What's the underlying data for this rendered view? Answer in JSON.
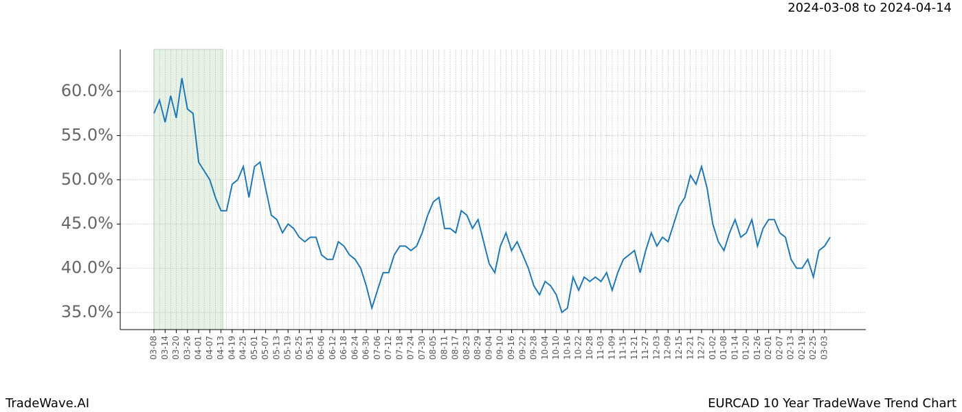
{
  "chart_data": {
    "type": "line",
    "title": "2024-03-08 to 2024-04-14",
    "footer_left": "TradeWave.AI",
    "footer_right": "EURCAD 10 Year TradeWave Trend Chart",
    "categories": [
      "03-08",
      null,
      "03-14",
      null,
      "03-20",
      null,
      "03-26",
      null,
      "04-01",
      null,
      "04-07",
      null,
      "04-13",
      null,
      "04-19",
      null,
      "04-25",
      null,
      "05-01",
      null,
      "05-07",
      null,
      "05-13",
      null,
      "05-19",
      null,
      "05-25",
      null,
      "05-31",
      null,
      "06-06",
      null,
      "06-12",
      null,
      "06-18",
      null,
      "06-24",
      null,
      "06-30",
      null,
      "07-06",
      null,
      "07-12",
      null,
      "07-18",
      null,
      "07-24",
      null,
      "07-30",
      null,
      "08-05",
      null,
      "08-11",
      null,
      "08-17",
      null,
      "08-23",
      null,
      "08-29",
      null,
      "09-04",
      null,
      "09-10",
      null,
      "09-16",
      null,
      "09-22",
      null,
      "09-28",
      null,
      "10-04",
      null,
      "10-10",
      null,
      "10-16",
      null,
      "10-22",
      null,
      "10-28",
      null,
      "11-03",
      null,
      "11-09",
      null,
      "11-15",
      null,
      "11-21",
      null,
      "11-27",
      null,
      "12-03",
      null,
      "12-09",
      null,
      "12-15",
      null,
      "12-21",
      null,
      "12-27",
      null,
      "01-02",
      null,
      "01-08",
      null,
      "01-14",
      null,
      "01-20",
      null,
      "01-26",
      null,
      "02-01",
      null,
      "02-07",
      null,
      "02-13",
      null,
      "02-19",
      null,
      "02-25",
      null,
      "03-03",
      null
    ],
    "values": [
      57.5,
      59,
      56.5,
      59.5,
      57,
      61.5,
      58,
      57.5,
      52,
      51,
      50,
      48,
      46.5,
      46.5,
      49.5,
      50,
      51.5,
      48,
      51.5,
      52,
      49,
      46,
      45.5,
      44,
      45,
      44.5,
      43.5,
      43,
      43.5,
      43.5,
      41.5,
      41,
      41,
      43,
      42.5,
      41.5,
      41,
      40,
      38,
      35.5,
      37.5,
      39.5,
      39.5,
      41.5,
      42.5,
      42.5,
      42,
      42.5,
      44,
      46,
      47.5,
      48,
      44.5,
      44.5,
      44,
      46.5,
      46,
      44.5,
      45.5,
      43,
      40.5,
      39.5,
      42.5,
      44,
      42,
      43,
      41.5,
      40,
      38,
      37,
      38.5,
      38,
      37,
      35,
      35.5,
      39,
      37.5,
      39,
      38.5,
      39,
      38.5,
      39.5,
      37.5,
      39.5,
      41,
      41.5,
      42,
      39.5,
      42,
      44,
      42.5,
      43.5,
      43,
      45,
      47,
      48,
      50.5,
      49.5,
      51.5,
      49,
      45,
      43,
      42,
      44,
      45.5,
      43.5,
      44,
      45.5,
      42.5,
      44.5,
      45.5,
      45.5,
      44,
      43.5,
      41,
      40,
      40,
      41,
      39,
      42,
      42.5,
      43.5
    ],
    "color": "#1f77b4",
    "highlight_color": "#e6f2e6",
    "ylim": [
      33.06,
      64.74
    ],
    "yticks": [
      {
        "value": 35,
        "label": "35.0%"
      },
      {
        "value": 40,
        "label": "40.0%"
      },
      {
        "value": 45,
        "label": "45.0%"
      },
      {
        "value": 50,
        "label": "50.0%"
      },
      {
        "value": 55,
        "label": "55.0%"
      },
      {
        "value": 60,
        "label": "60.0%"
      }
    ],
    "grid": true
  }
}
